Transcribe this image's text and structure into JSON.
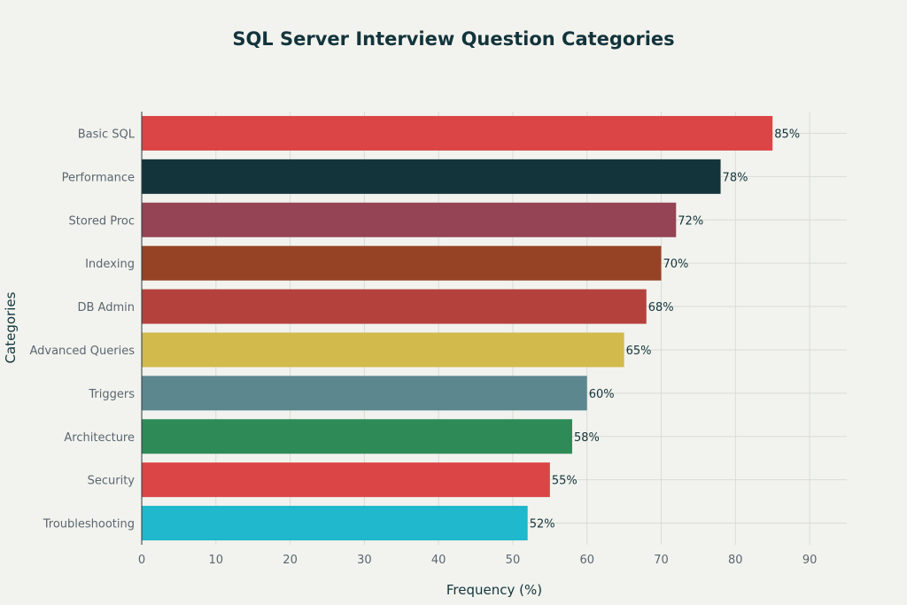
{
  "chart_data": {
    "type": "bar",
    "orientation": "horizontal",
    "title": "SQL Server Interview Question Categories",
    "xlabel": "Frequency (%)",
    "ylabel": "Categories",
    "xlim": [
      0,
      95
    ],
    "xticks": [
      0,
      10,
      20,
      30,
      40,
      50,
      60,
      70,
      80,
      90
    ],
    "grid": true,
    "categories": [
      "Basic SQL",
      "Performance",
      "Stored Proc",
      "Indexing",
      "DB Admin",
      "Advanced Queries",
      "Triggers",
      "Architecture",
      "Security",
      "Troubleshooting"
    ],
    "values": [
      85,
      78,
      72,
      70,
      68,
      65,
      60,
      58,
      55,
      52
    ],
    "value_labels": [
      "85%",
      "78%",
      "72%",
      "70%",
      "68%",
      "65%",
      "60%",
      "58%",
      "55%",
      "52%"
    ],
    "colors": [
      "#db4545",
      "#13343b",
      "#944454",
      "#964325",
      "#b4413c",
      "#d2ba4c",
      "#5d878f",
      "#2e8b57",
      "#db4545",
      "#1fb8cd"
    ]
  }
}
